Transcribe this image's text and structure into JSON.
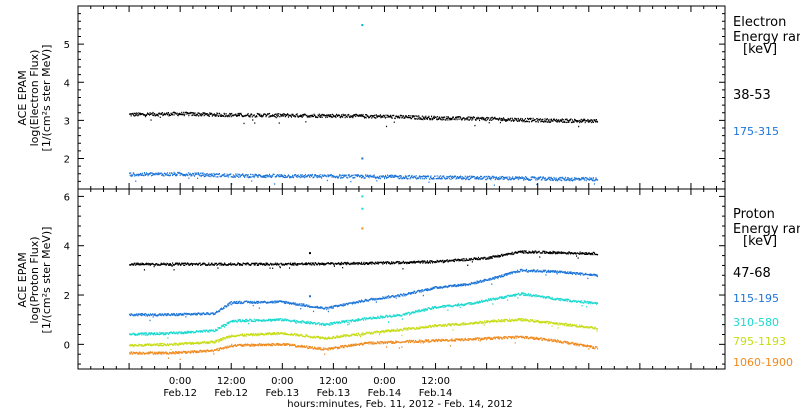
{
  "chart_data": [
    {
      "type": "scatter",
      "panel": "electron",
      "ylabel_lines": [
        "ACE EPAM",
        "log(Electron Flux)",
        "[1/(cm²s ster MeV)]"
      ],
      "ylim": [
        1.2,
        6.0
      ],
      "yticks": [
        "2",
        "3",
        "4",
        "5"
      ],
      "side_title_lines": [
        "Electron",
        "Energy range",
        "[keV]"
      ],
      "series": [
        {
          "name": "38-53",
          "color": "#000000",
          "points": [
            [
              0,
              3.15
            ],
            [
              12,
              3.17
            ],
            [
              24,
              3.14
            ],
            [
              36,
              3.13
            ],
            [
              48,
              3.12
            ],
            [
              60,
              3.1
            ],
            [
              72,
              3.06
            ],
            [
              84,
              3.04
            ],
            [
              96,
              3.0
            ],
            [
              110,
              2.98
            ]
          ]
        },
        {
          "name": "175-315",
          "color": "#1c74d8",
          "points": [
            [
              0,
              1.58
            ],
            [
              12,
              1.59
            ],
            [
              24,
              1.55
            ],
            [
              36,
              1.54
            ],
            [
              48,
              1.53
            ],
            [
              60,
              1.52
            ],
            [
              72,
              1.5
            ],
            [
              84,
              1.49
            ],
            [
              96,
              1.47
            ],
            [
              110,
              1.45
            ]
          ]
        }
      ],
      "outliers": [
        {
          "x": 54.8,
          "y": 5.5,
          "color": "#00b4c8"
        },
        {
          "x": 54.8,
          "y": 2.0,
          "color": "#1c74d8"
        }
      ]
    },
    {
      "type": "scatter",
      "panel": "proton",
      "ylabel_lines": [
        "ACE EPAM",
        "log(Proton Flux)",
        "[1/(cm²s ster MeV)]"
      ],
      "ylim": [
        -1.0,
        6.3
      ],
      "yticks": [
        "0",
        "2",
        "4",
        "6"
      ],
      "side_title_lines": [
        "Proton",
        "Energy range",
        "[keV]"
      ],
      "series": [
        {
          "name": "47-68",
          "color": "#000000",
          "points": [
            [
              0,
              3.25
            ],
            [
              12,
              3.25
            ],
            [
              24,
              3.25
            ],
            [
              36,
              3.25
            ],
            [
              48,
              3.27
            ],
            [
              60,
              3.3
            ],
            [
              72,
              3.35
            ],
            [
              84,
              3.5
            ],
            [
              92,
              3.75
            ],
            [
              100,
              3.72
            ],
            [
              110,
              3.68
            ]
          ]
        },
        {
          "name": "115-195",
          "color": "#1c74d8",
          "points": [
            [
              0,
              1.2
            ],
            [
              10,
              1.2
            ],
            [
              20,
              1.25
            ],
            [
              24,
              1.7
            ],
            [
              36,
              1.72
            ],
            [
              46,
              1.45
            ],
            [
              56,
              1.8
            ],
            [
              64,
              2.0
            ],
            [
              72,
              2.3
            ],
            [
              80,
              2.45
            ],
            [
              86,
              2.7
            ],
            [
              92,
              3.0
            ],
            [
              100,
              2.95
            ],
            [
              110,
              2.8
            ]
          ]
        },
        {
          "name": "310-580",
          "color": "#1ad9cf",
          "points": [
            [
              0,
              0.4
            ],
            [
              10,
              0.45
            ],
            [
              20,
              0.55
            ],
            [
              24,
              0.95
            ],
            [
              36,
              1.0
            ],
            [
              46,
              0.8
            ],
            [
              56,
              1.05
            ],
            [
              64,
              1.2
            ],
            [
              72,
              1.5
            ],
            [
              80,
              1.65
            ],
            [
              86,
              1.85
            ],
            [
              92,
              2.05
            ],
            [
              100,
              1.85
            ],
            [
              110,
              1.65
            ]
          ]
        },
        {
          "name": "795-1193",
          "color": "#c6dc14",
          "points": [
            [
              0,
              -0.05
            ],
            [
              10,
              0.0
            ],
            [
              20,
              0.1
            ],
            [
              24,
              0.35
            ],
            [
              36,
              0.45
            ],
            [
              46,
              0.25
            ],
            [
              56,
              0.45
            ],
            [
              64,
              0.6
            ],
            [
              72,
              0.75
            ],
            [
              80,
              0.85
            ],
            [
              86,
              0.95
            ],
            [
              92,
              1.0
            ],
            [
              100,
              0.85
            ],
            [
              110,
              0.65
            ]
          ]
        },
        {
          "name": "1060-1900",
          "color": "#f08a1e",
          "points": [
            [
              0,
              -0.35
            ],
            [
              10,
              -0.35
            ],
            [
              20,
              -0.25
            ],
            [
              24,
              -0.05
            ],
            [
              36,
              0.0
            ],
            [
              46,
              -0.2
            ],
            [
              56,
              0.05
            ],
            [
              64,
              0.1
            ],
            [
              72,
              0.15
            ],
            [
              80,
              0.2
            ],
            [
              86,
              0.25
            ],
            [
              92,
              0.3
            ],
            [
              100,
              0.15
            ],
            [
              110,
              -0.15
            ]
          ]
        }
      ],
      "outliers": [
        {
          "x": 54.8,
          "y": 6.0,
          "color": "#1ad9cf"
        },
        {
          "x": 54.8,
          "y": 5.5,
          "color": "#1ad9cf"
        },
        {
          "x": 54.8,
          "y": 4.7,
          "color": "#f08a1e"
        },
        {
          "x": 42.5,
          "y": 3.7,
          "color": "#000000"
        },
        {
          "x": 42.5,
          "y": 1.95,
          "color": "#1c74d8"
        }
      ]
    }
  ],
  "x_axis": {
    "range_hours": [
      -12,
      140
    ],
    "ticks": [
      {
        "h": 12,
        "time": "0:00",
        "date": "Feb.12"
      },
      {
        "h": 24,
        "time": "12:00",
        "date": "Feb.12"
      },
      {
        "h": 36,
        "time": "0:00",
        "date": "Feb.13"
      },
      {
        "h": 48,
        "time": "12:00",
        "date": "Feb.13"
      },
      {
        "h": 60,
        "time": "0:00",
        "date": "Feb.14"
      },
      {
        "h": 72,
        "time": "12:00",
        "date": "Feb.14"
      }
    ],
    "xlabel": "hours:minutes, Feb. 11, 2012 - Feb. 14, 2012"
  }
}
